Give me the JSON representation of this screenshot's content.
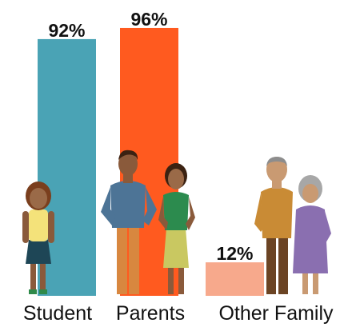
{
  "chart_data": {
    "type": "bar",
    "categories": [
      "Student",
      "Parents",
      "Other Family"
    ],
    "values": [
      92,
      96,
      12
    ],
    "value_labels": [
      "92%",
      "96%",
      "12%"
    ],
    "colors": [
      "#4aa3b5",
      "#ff5a1f",
      "#f7a98c"
    ],
    "ylim": [
      0,
      100
    ]
  }
}
